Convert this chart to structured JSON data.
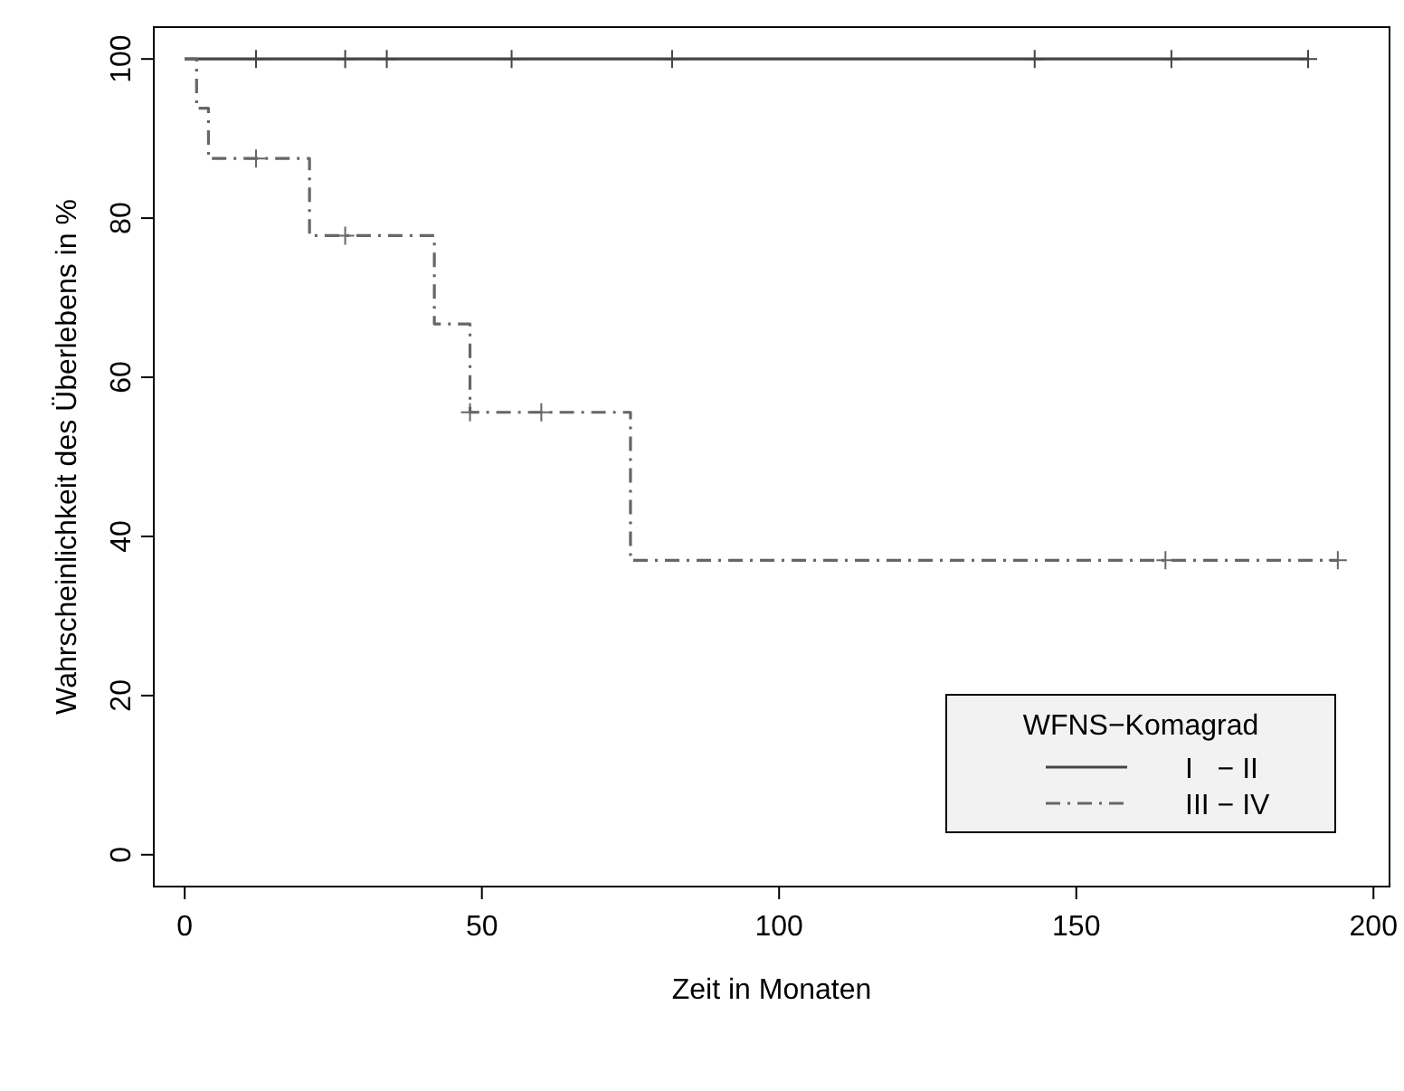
{
  "chart_data": {
    "type": "step",
    "xlabel": "Zeit in Monaten",
    "ylabel": "Wahrscheinlichkeit des Überlebens in %",
    "legend_title": "WFNS−Komagrad",
    "legend": "bottom right",
    "grid": false,
    "xlim": [
      -5.2,
      202.7
    ],
    "ylim": [
      -4,
      104
    ],
    "xticks": [
      0,
      50,
      100,
      150,
      200
    ],
    "yticks": [
      0,
      20,
      40,
      60,
      80,
      100
    ],
    "series": [
      {
        "name": "I   − II",
        "color": "#444444",
        "line_style": "solid",
        "x": [
          0,
          189
        ],
        "values": [
          100,
          100
        ]
      },
      {
        "name": "III − IV",
        "color": "#666666",
        "line_style": "dashed",
        "x": [
          0,
          2,
          4,
          21,
          42,
          48,
          75,
          194
        ],
        "values": [
          100,
          93.8,
          87.5,
          77.8,
          66.7,
          55.6,
          37,
          37
        ]
      },
      {
        "type": "scatter",
        "marker": "cross",
        "color": "#444444",
        "x": [
          12,
          27,
          34,
          55,
          82,
          143,
          166,
          189
        ],
        "values": [
          100,
          100,
          100,
          100,
          100,
          100,
          100,
          100
        ]
      },
      {
        "type": "scatter",
        "marker": "cross",
        "color": "#666666",
        "x": [
          12,
          27,
          48,
          60,
          165,
          194
        ],
        "values": [
          87.5,
          77.8,
          55.6,
          55.6,
          37,
          37
        ]
      }
    ]
  }
}
